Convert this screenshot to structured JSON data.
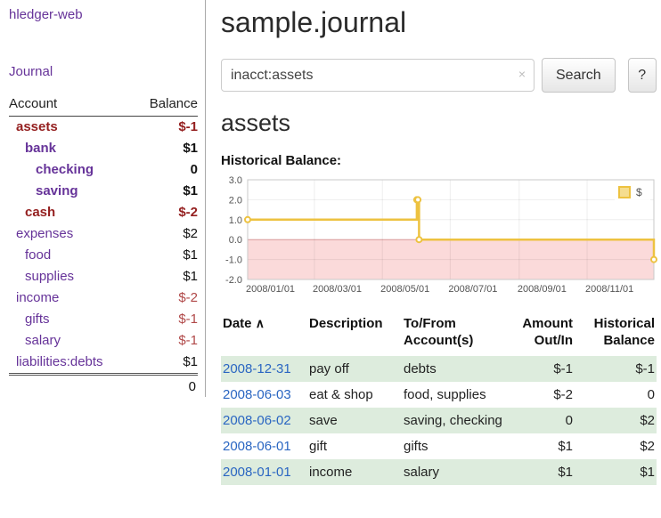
{
  "app_title": "hledger-web",
  "sidebar": {
    "journal_link": "Journal",
    "accounts": {
      "col_account": "Account",
      "col_balance": "Balance",
      "rows": [
        {
          "name": "assets",
          "balance": "$-1",
          "indent": 0,
          "bold": true,
          "name_color": "maroon",
          "bal_color": "maroon"
        },
        {
          "name": "bank",
          "balance": "$1",
          "indent": 1,
          "bold": true,
          "name_color": "purple",
          "bal_color": "black"
        },
        {
          "name": "checking",
          "balance": "0",
          "indent": 2,
          "bold": true,
          "name_color": "purple",
          "bal_color": "black"
        },
        {
          "name": "saving",
          "balance": "$1",
          "indent": 2,
          "bold": true,
          "name_color": "purple",
          "bal_color": "black"
        },
        {
          "name": "cash",
          "balance": "$-2",
          "indent": 1,
          "bold": true,
          "name_color": "maroon",
          "bal_color": "maroon"
        },
        {
          "name": "expenses",
          "balance": "$2",
          "indent": 0,
          "bold": false,
          "name_color": "purple",
          "bal_color": "black"
        },
        {
          "name": "food",
          "balance": "$1",
          "indent": 1,
          "bold": false,
          "name_color": "purple",
          "bal_color": "black"
        },
        {
          "name": "supplies",
          "balance": "$1",
          "indent": 1,
          "bold": false,
          "name_color": "purple",
          "bal_color": "black"
        },
        {
          "name": "income",
          "balance": "$-2",
          "indent": 0,
          "bold": false,
          "name_color": "purple",
          "bal_color": "red"
        },
        {
          "name": "gifts",
          "balance": "$-1",
          "indent": 1,
          "bold": false,
          "name_color": "purple",
          "bal_color": "red"
        },
        {
          "name": "salary",
          "balance": "$-1",
          "indent": 1,
          "bold": false,
          "name_color": "purple",
          "bal_color": "red"
        },
        {
          "name": "liabilities:debts",
          "balance": "$1",
          "indent": 0,
          "bold": false,
          "name_color": "purple",
          "bal_color": "black"
        }
      ],
      "total": "0"
    }
  },
  "main": {
    "title": "sample.journal",
    "search": {
      "value": "inacct:assets",
      "clear": "×",
      "search_button": "Search",
      "help_button": "?"
    },
    "account_heading": "assets",
    "chart_heading": "Historical Balance:"
  },
  "chart_data": {
    "type": "line",
    "style": "step",
    "title": "Historical Balance",
    "x_range": [
      "2008-01-01",
      "2008-12-31"
    ],
    "ylim": [
      -2,
      3
    ],
    "y_ticks": [
      "3.0",
      "2.0",
      "1.0",
      "0.0",
      "-1.0",
      "-2.0"
    ],
    "x_ticks": [
      "2008/01/01",
      "2008/03/01",
      "2008/05/01",
      "2008/07/01",
      "2008/09/01",
      "2008/11/01"
    ],
    "series": [
      {
        "name": "$",
        "color": "#edc240",
        "points": [
          {
            "date": "2008-01-01",
            "value": 1
          },
          {
            "date": "2008-06-01",
            "value": 2
          },
          {
            "date": "2008-06-02",
            "value": 2
          },
          {
            "date": "2008-06-03",
            "value": 0
          },
          {
            "date": "2008-12-31",
            "value": -1
          }
        ]
      }
    ],
    "negative_region": {
      "from": 0,
      "to": -2,
      "color": "#fbdada"
    },
    "legend": {
      "label": "$",
      "position": "top-right"
    }
  },
  "register": {
    "headers": {
      "date": "Date",
      "sort_icon": "∧",
      "description": "Description",
      "account": "To/From Account(s)",
      "amount": "Amount Out/In",
      "balance": "Historical Balance"
    },
    "rows": [
      {
        "date": "2008-12-31",
        "description": "pay off",
        "account": "debts",
        "amount": "$-1",
        "amount_neg": true,
        "balance": "$-1",
        "balance_neg": true,
        "shaded": true
      },
      {
        "date": "2008-06-03",
        "description": "eat & shop",
        "account": "food, supplies",
        "amount": "$-2",
        "amount_neg": true,
        "balance": "0",
        "balance_neg": false,
        "shaded": false
      },
      {
        "date": "2008-06-02",
        "description": "save",
        "account": "saving, checking",
        "amount": "0",
        "amount_neg": false,
        "balance": "$2",
        "balance_neg": false,
        "shaded": true
      },
      {
        "date": "2008-06-01",
        "description": "gift",
        "account": "gifts",
        "amount": "$1",
        "amount_neg": false,
        "balance": "$2",
        "balance_neg": false,
        "shaded": false
      },
      {
        "date": "2008-01-01",
        "description": "income",
        "account": "salary",
        "amount": "$1",
        "amount_neg": false,
        "balance": "$1",
        "balance_neg": false,
        "shaded": true
      }
    ]
  }
}
